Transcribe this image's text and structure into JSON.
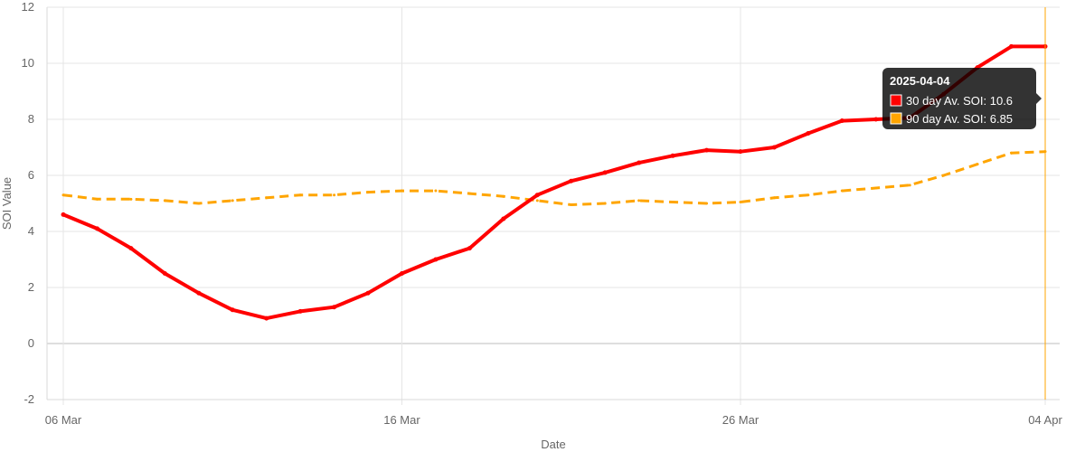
{
  "chart_data": {
    "type": "line",
    "xlabel": "Date",
    "ylabel": "SOI Value",
    "ylim": [
      -2,
      12
    ],
    "yticks": [
      -2,
      0,
      2,
      4,
      6,
      8,
      10,
      12
    ],
    "xlim": [
      "2025-03-06",
      "2025-04-04"
    ],
    "xticks": [
      {
        "date": "2025-03-06",
        "label": "06 Mar"
      },
      {
        "date": "2025-03-16",
        "label": "16 Mar"
      },
      {
        "date": "2025-03-26",
        "label": "26 Mar"
      },
      {
        "date": "2025-04-04",
        "label": "04 Apr"
      }
    ],
    "grid": true,
    "legend": "none",
    "series": [
      {
        "name": "30 day Av. SOI",
        "color": "#ff0000",
        "style": "solid",
        "points": [
          [
            "2025-03-06",
            4.6
          ],
          [
            "2025-03-07",
            4.1
          ],
          [
            "2025-03-08",
            3.4
          ],
          [
            "2025-03-09",
            2.5
          ],
          [
            "2025-03-10",
            1.8
          ],
          [
            "2025-03-11",
            1.2
          ],
          [
            "2025-03-12",
            0.9
          ],
          [
            "2025-03-13",
            1.15
          ],
          [
            "2025-03-14",
            1.3
          ],
          [
            "2025-03-15",
            1.8
          ],
          [
            "2025-03-16",
            2.5
          ],
          [
            "2025-03-17",
            3.0
          ],
          [
            "2025-03-18",
            3.4
          ],
          [
            "2025-03-19",
            4.45
          ],
          [
            "2025-03-20",
            5.3
          ],
          [
            "2025-03-21",
            5.8
          ],
          [
            "2025-03-22",
            6.1
          ],
          [
            "2025-03-23",
            6.45
          ],
          [
            "2025-03-24",
            6.7
          ],
          [
            "2025-03-25",
            6.9
          ],
          [
            "2025-03-26",
            6.85
          ],
          [
            "2025-03-27",
            7.0
          ],
          [
            "2025-03-28",
            7.5
          ],
          [
            "2025-03-29",
            7.95
          ],
          [
            "2025-03-30",
            8.0
          ],
          [
            "2025-03-31",
            8.05
          ],
          [
            "2025-04-01",
            8.9
          ],
          [
            "2025-04-02",
            9.85
          ],
          [
            "2025-04-03",
            10.6
          ],
          [
            "2025-04-04",
            10.6
          ]
        ]
      },
      {
        "name": "90 day Av. SOI",
        "color": "#ffa500",
        "style": "dashed",
        "points": [
          [
            "2025-03-06",
            5.3
          ],
          [
            "2025-03-07",
            5.15
          ],
          [
            "2025-03-08",
            5.15
          ],
          [
            "2025-03-09",
            5.1
          ],
          [
            "2025-03-10",
            5.0
          ],
          [
            "2025-03-11",
            5.1
          ],
          [
            "2025-03-12",
            5.2
          ],
          [
            "2025-03-13",
            5.3
          ],
          [
            "2025-03-14",
            5.3
          ],
          [
            "2025-03-15",
            5.4
          ],
          [
            "2025-03-16",
            5.45
          ],
          [
            "2025-03-17",
            5.45
          ],
          [
            "2025-03-18",
            5.35
          ],
          [
            "2025-03-19",
            5.25
          ],
          [
            "2025-03-20",
            5.1
          ],
          [
            "2025-03-21",
            4.95
          ],
          [
            "2025-03-22",
            5.0
          ],
          [
            "2025-03-23",
            5.1
          ],
          [
            "2025-03-24",
            5.05
          ],
          [
            "2025-03-25",
            5.0
          ],
          [
            "2025-03-26",
            5.05
          ],
          [
            "2025-03-27",
            5.2
          ],
          [
            "2025-03-28",
            5.3
          ],
          [
            "2025-03-29",
            5.45
          ],
          [
            "2025-03-30",
            5.55
          ],
          [
            "2025-03-31",
            5.65
          ],
          [
            "2025-04-01",
            6.0
          ],
          [
            "2025-04-02",
            6.4
          ],
          [
            "2025-04-03",
            6.8
          ],
          [
            "2025-04-04",
            6.85
          ]
        ]
      }
    ],
    "tooltip": {
      "date": "2025-04-04",
      "title": "2025-04-04",
      "items": [
        {
          "text": "30 day Av. SOI: 10.6",
          "color": "#ff0000"
        },
        {
          "text": "90 day Av. SOI: 6.85",
          "color": "#ffa500"
        }
      ]
    },
    "hover_line_color": "#ffa500"
  }
}
